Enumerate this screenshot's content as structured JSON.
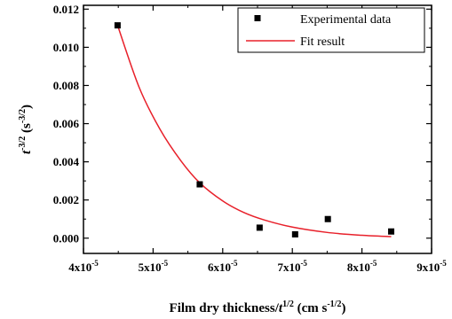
{
  "chart_data": {
    "type": "scatter",
    "xlabel": {
      "base": "Film dry thickness/",
      "t": "t",
      "t_exp": "1/2",
      "unit_open": " (cm s",
      "unit_exp": "-1/2",
      "unit_close": ")"
    },
    "ylabel": {
      "t": "t",
      "t_exp": "-3/2",
      "unit_open": " (s",
      "unit_exp": "-3/2",
      "unit_close": ")"
    },
    "xlim": [
      4e-05,
      9e-05
    ],
    "ylim": [
      -0.0008,
      0.0122
    ],
    "x_ticks": [
      {
        "value": 4e-05,
        "mant": "4x10",
        "exp": "-5"
      },
      {
        "value": 5e-05,
        "mant": "5x10",
        "exp": "-5"
      },
      {
        "value": 6e-05,
        "mant": "6x10",
        "exp": "-5"
      },
      {
        "value": 7e-05,
        "mant": "7x10",
        "exp": "-5"
      },
      {
        "value": 8e-05,
        "mant": "8x10",
        "exp": "-5"
      },
      {
        "value": 9e-05,
        "mant": "9x10",
        "exp": "-5"
      }
    ],
    "y_ticks": [
      {
        "value": 0.0,
        "label": "0.000"
      },
      {
        "value": 0.002,
        "label": "0.002"
      },
      {
        "value": 0.004,
        "label": "0.004"
      },
      {
        "value": 0.006,
        "label": "0.006"
      },
      {
        "value": 0.008,
        "label": "0.008"
      },
      {
        "value": 0.01,
        "label": "0.010"
      },
      {
        "value": 0.012,
        "label": "0.012"
      }
    ],
    "series": [
      {
        "name": "Experimental data",
        "kind": "scatter",
        "color": "#000000",
        "marker": "square",
        "points": [
          {
            "x": 4.49e-05,
            "y": 0.01115
          },
          {
            "x": 5.67e-05,
            "y": 0.00282
          },
          {
            "x": 6.53e-05,
            "y": 0.00055
          },
          {
            "x": 7.04e-05,
            "y": 0.0002
          },
          {
            "x": 7.51e-05,
            "y": 0.001
          },
          {
            "x": 8.42e-05,
            "y": 0.00035
          }
        ]
      },
      {
        "name": "Fit result",
        "kind": "line",
        "color": "#e8202a",
        "points": [
          {
            "x": 4.49e-05,
            "y": 0.01115
          },
          {
            "x": 4.8e-05,
            "y": 0.0079
          },
          {
            "x": 5.1e-05,
            "y": 0.0057
          },
          {
            "x": 5.4e-05,
            "y": 0.00405
          },
          {
            "x": 5.67e-05,
            "y": 0.0029
          },
          {
            "x": 6e-05,
            "y": 0.00195
          },
          {
            "x": 6.3e-05,
            "y": 0.00135
          },
          {
            "x": 6.6e-05,
            "y": 0.00095
          },
          {
            "x": 7e-05,
            "y": 0.00058
          },
          {
            "x": 7.5e-05,
            "y": 0.0003
          },
          {
            "x": 8e-05,
            "y": 0.00015
          },
          {
            "x": 8.42e-05,
            "y": 8e-05
          }
        ]
      }
    ],
    "legend": {
      "position": "top-right"
    },
    "grid": false
  }
}
